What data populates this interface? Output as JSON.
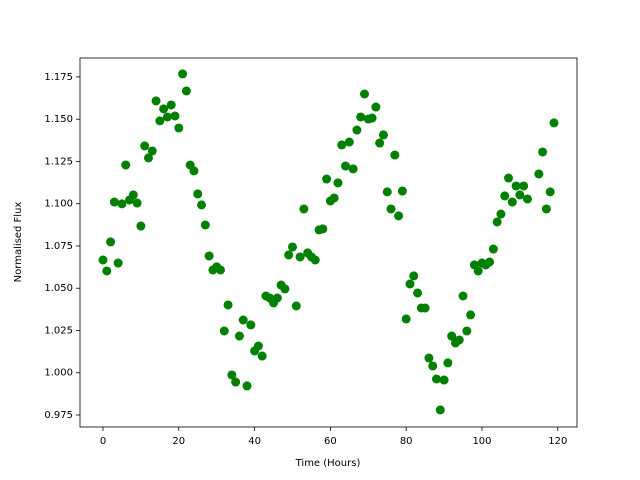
{
  "chart_data": {
    "type": "scatter",
    "xlabel": "Time (Hours)",
    "ylabel": "Normalised Flux",
    "color": "#008000",
    "xlim": [
      -6.07,
      125.07
    ],
    "ylim": [
      0.9679,
      1.1862
    ],
    "xticks": [
      0,
      20,
      40,
      60,
      80,
      100,
      120
    ],
    "yticks": [
      0.975,
      {
        "value": 1.0,
        "label": "1.000"
      },
      1.025,
      {
        "value": 1.05,
        "label": "1.050"
      },
      1.075,
      {
        "value": 1.1,
        "label": "1.100"
      },
      1.125,
      {
        "value": 1.15,
        "label": "1.150"
      },
      1.175
    ],
    "x": [
      0,
      1,
      2,
      3,
      4,
      5,
      6,
      7,
      8,
      9,
      10,
      11,
      12,
      13,
      14,
      15,
      16,
      17,
      18,
      19,
      20,
      21,
      22,
      23,
      24,
      25,
      26,
      27,
      28,
      29,
      30,
      31,
      32,
      33,
      34,
      35,
      36,
      37,
      38,
      39,
      40,
      41,
      42,
      43,
      44,
      45,
      46,
      47,
      48,
      49,
      50,
      51,
      52,
      53,
      54,
      55,
      56,
      57,
      58,
      59,
      60,
      61,
      62,
      63,
      64,
      65,
      66,
      67,
      68,
      69,
      70,
      71,
      72,
      73,
      74,
      75,
      76,
      77,
      78,
      79,
      80,
      81,
      82,
      83,
      84,
      85,
      86,
      87,
      88,
      89,
      90,
      91,
      92,
      93,
      94,
      95,
      96,
      97,
      98,
      99,
      100,
      101,
      102,
      103,
      104,
      105,
      106,
      107,
      108,
      109,
      110,
      111,
      112,
      115,
      116,
      117,
      118,
      119
    ],
    "values": [
      1.0667,
      1.0602,
      1.0774,
      1.101,
      1.0649,
      1.0999,
      1.1229,
      1.1022,
      1.1052,
      1.1004,
      1.0868,
      1.1342,
      1.1271,
      1.1312,
      1.1608,
      1.149,
      1.1561,
      1.1513,
      1.1584,
      1.1519,
      1.1448,
      1.1768,
      1.1667,
      1.1229,
      1.1194,
      1.1058,
      1.0993,
      1.0874,
      1.0691,
      1.0608,
      1.0626,
      1.0608,
      1.0247,
      1.0401,
      0.9987,
      0.9945,
      1.0217,
      1.0312,
      0.9922,
      1.0283,
      1.0129,
      1.0158,
      1.0099,
      1.0454,
      1.0442,
      1.0413,
      1.0442,
      1.0519,
      1.0496,
      1.0697,
      1.0744,
      1.0395,
      1.0685,
      1.0969,
      1.0709,
      1.0685,
      1.0667,
      1.0845,
      1.0851,
      1.1146,
      1.1016,
      1.1034,
      1.1123,
      1.1348,
      1.1223,
      1.1365,
      1.1206,
      1.1436,
      1.1513,
      1.1649,
      1.1501,
      1.1507,
      1.1572,
      1.1359,
      1.1407,
      1.107,
      1.0969,
      1.1288,
      1.0928,
      1.1075,
      1.0318,
      1.0525,
      1.0573,
      1.0472,
      1.0383,
      1.0383,
      1.0087,
      1.004,
      0.9963,
      0.978,
      0.9957,
      1.0058,
      1.0217,
      1.0176,
      1.0194,
      1.0454,
      1.0247,
      1.0342,
      1.0638,
      1.0602,
      1.0649,
      1.0638,
      1.0655,
      1.0732,
      1.0892,
      1.0939,
      1.1046,
      1.1152,
      1.101,
      1.1105,
      1.1052,
      1.1105,
      1.1028,
      1.1176,
      1.1306,
      1.0969,
      1.107,
      1.1478
    ]
  }
}
